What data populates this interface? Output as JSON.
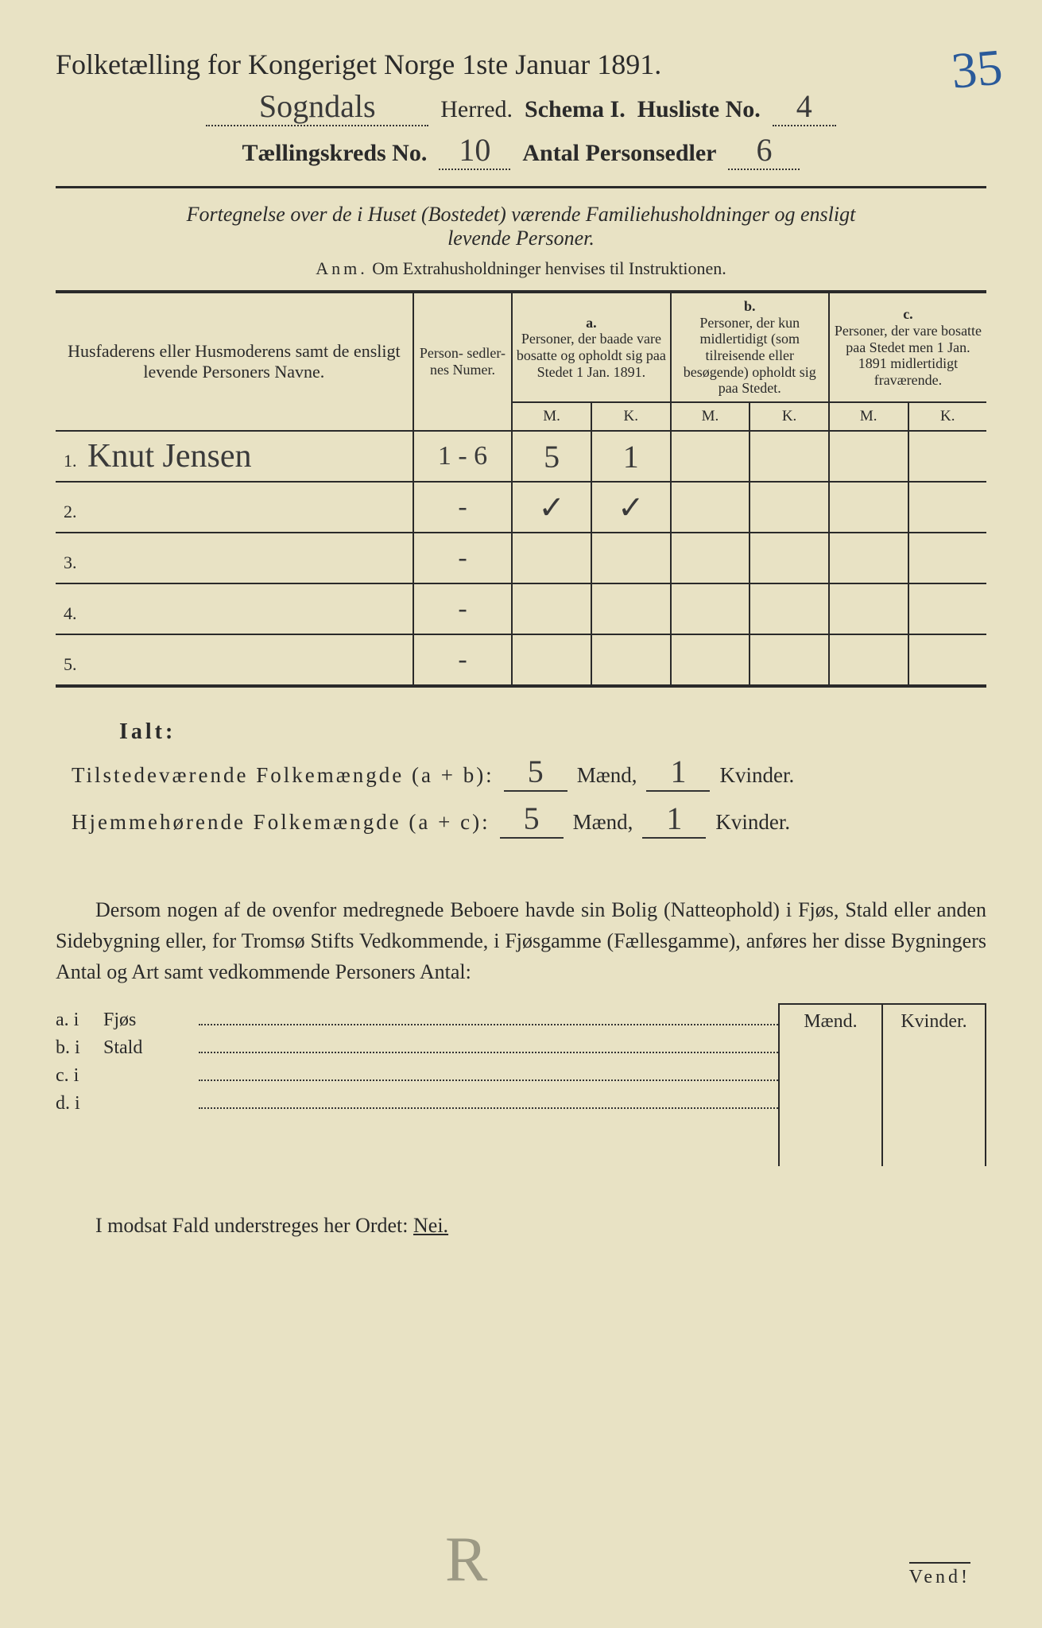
{
  "colors": {
    "paper": "#e8e2c4",
    "ink": "#2a2a2a",
    "handwriting_blue": "#2a5a9a",
    "handwriting_dark": "#3a3a3a",
    "faint_mark": "#6a6a5a"
  },
  "typography": {
    "title_fontsize": 36,
    "subtitle_fontsize": 30,
    "body_fontsize": 26,
    "table_header_fontsize": 19,
    "handwriting_fontsize": 40
  },
  "header": {
    "title": "Folketælling for Kongeriget Norge 1ste Januar 1891.",
    "page_number_handwritten": "35",
    "herred_value_hw": "Sogndals",
    "herred_label": "Herred.",
    "schema_label": "Schema I.",
    "husliste_label": "Husliste No.",
    "husliste_value_hw": "4",
    "kreds_label": "Tællingskreds No.",
    "kreds_value_hw": "10",
    "personsedler_label": "Antal Personsedler",
    "personsedler_value_hw": "6"
  },
  "description": {
    "line1": "Fortegnelse over de i Huset (Bostedet) værende Familiehusholdninger og ensligt",
    "line2": "levende Personer.",
    "anm_label": "Anm.",
    "anm_text": "Om Extrahusholdninger henvises til Instruktionen."
  },
  "table": {
    "col_names": "Husfaderens eller Husmoderens samt de ensligt levende Personers Navne.",
    "col_numer": "Person-\nsedler-\nnes\nNumer.",
    "col_a_letter": "a.",
    "col_a": "Personer, der baade vare bosatte og opholdt sig paa Stedet 1 Jan. 1891.",
    "col_b_letter": "b.",
    "col_b": "Personer, der kun midlertidigt (som tilreisende eller besøgende) opholdt sig paa Stedet.",
    "col_c_letter": "c.",
    "col_c": "Personer, der vare bosatte paa Stedet men 1 Jan. 1891 midlertidigt fraværende.",
    "m": "M.",
    "k": "K.",
    "rows": [
      {
        "n": "1.",
        "name": "Knut Jensen",
        "numer": "1 - 6",
        "a_m": "5",
        "a_k": "1",
        "b_m": "",
        "b_k": "",
        "c_m": "",
        "c_k": ""
      },
      {
        "n": "2.",
        "name": "",
        "numer": "-",
        "a_m": "✓",
        "a_k": "✓",
        "b_m": "",
        "b_k": "",
        "c_m": "",
        "c_k": ""
      },
      {
        "n": "3.",
        "name": "",
        "numer": "-",
        "a_m": "",
        "a_k": "",
        "b_m": "",
        "b_k": "",
        "c_m": "",
        "c_k": ""
      },
      {
        "n": "4.",
        "name": "",
        "numer": "-",
        "a_m": "",
        "a_k": "",
        "b_m": "",
        "b_k": "",
        "c_m": "",
        "c_k": ""
      },
      {
        "n": "5.",
        "name": "",
        "numer": "-",
        "a_m": "",
        "a_k": "",
        "b_m": "",
        "b_k": "",
        "c_m": "",
        "c_k": ""
      }
    ]
  },
  "ialt": {
    "label": "Ialt:",
    "line1_label": "Tilstedeværende Folkemængde (a + b):",
    "line2_label": "Hjemmehørende Folkemængde (a + c):",
    "maend": "Mænd,",
    "kvinder": "Kvinder.",
    "line1_m": "5",
    "line1_k": "1",
    "line2_m": "5",
    "line2_k": "1"
  },
  "para": {
    "text": "Dersom nogen af de ovenfor medregnede Beboere havde sin Bolig (Natteophold) i Fjøs, Stald eller anden Sidebygning eller, for Tromsø Stifts Vedkommende, i Fjøsgamme (Fællesgamme), anføres her disse Bygningers Antal og Art samt vedkommende Personers Antal:"
  },
  "fjoslist": {
    "maend": "Mænd.",
    "kvinder": "Kvinder.",
    "rows": [
      {
        "lbl": "a.  i",
        "word": "Fjøs"
      },
      {
        "lbl": "b.  i",
        "word": "Stald"
      },
      {
        "lbl": "c.  i",
        "word": ""
      },
      {
        "lbl": "d.  i",
        "word": ""
      }
    ]
  },
  "bottom": {
    "text": "I modsat Fald understreges her Ordet:",
    "nei": "Nei.",
    "vend": "Vend!",
    "mark": "R"
  }
}
